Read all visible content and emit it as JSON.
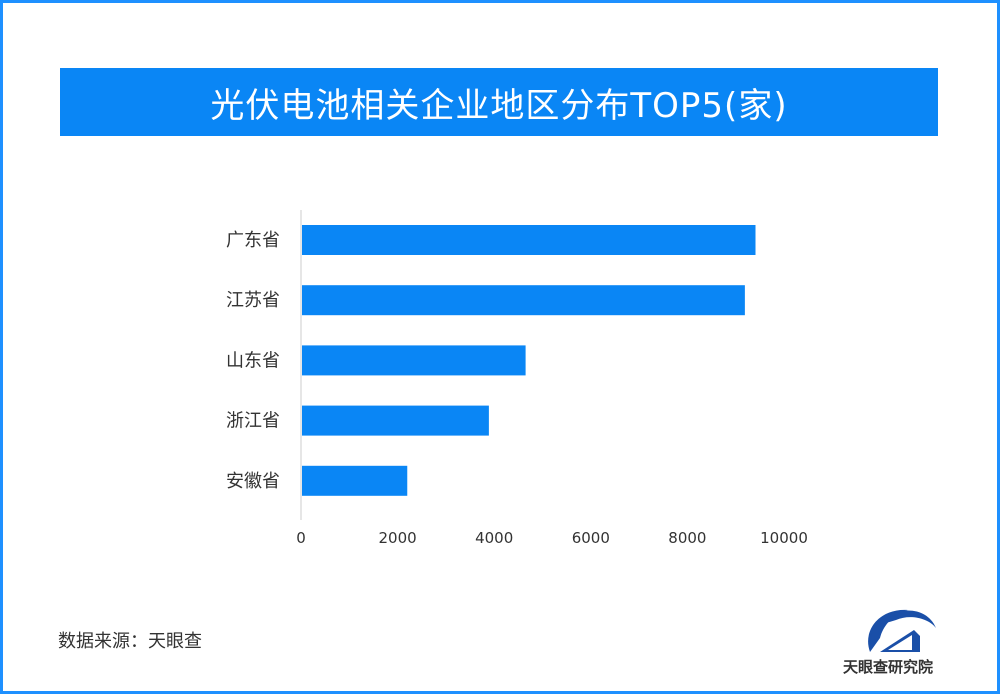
{
  "title": "光伏电池相关企业地区分布TOP5(家)",
  "source": "数据来源：天眼查",
  "logo_text": "天眼查研究院",
  "colors": {
    "bar": "#0a86f5",
    "title_bg": "#0a86f5",
    "frame": "#1e90ff"
  },
  "chart_data": {
    "type": "bar",
    "orientation": "horizontal",
    "title": "光伏电池相关企业地区分布TOP5(家)",
    "categories": [
      "广东省",
      "江苏省",
      "山东省",
      "浙江省",
      "安徽省"
    ],
    "values": [
      9410,
      9190,
      4650,
      3890,
      2200
    ],
    "xlim": [
      0,
      10000
    ],
    "xticks": [
      "0",
      "2000",
      "4000",
      "6000",
      "8000",
      "10000"
    ],
    "grid": false,
    "legend": "none"
  }
}
